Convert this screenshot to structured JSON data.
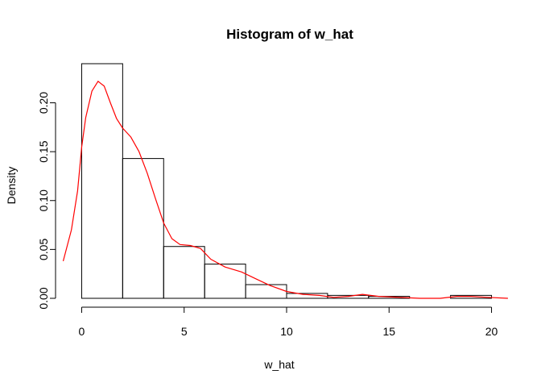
{
  "chart_data": {
    "type": "bar",
    "title": "Histogram of w_hat",
    "xlabel": "w_hat",
    "ylabel": "Density",
    "xlim": [
      -1,
      21
    ],
    "ylim": [
      0,
      0.24
    ],
    "x_ticks": [
      "0",
      "5",
      "10",
      "15",
      "20"
    ],
    "y_ticks": [
      "0.00",
      "0.05",
      "0.10",
      "0.15",
      "0.20"
    ],
    "bins": [
      {
        "x0": 0,
        "x1": 2,
        "density": 0.24
      },
      {
        "x0": 2,
        "x1": 4,
        "density": 0.143
      },
      {
        "x0": 4,
        "x1": 6,
        "density": 0.053
      },
      {
        "x0": 6,
        "x1": 8,
        "density": 0.035
      },
      {
        "x0": 8,
        "x1": 10,
        "density": 0.014
      },
      {
        "x0": 10,
        "x1": 12,
        "density": 0.005
      },
      {
        "x0": 12,
        "x1": 14,
        "density": 0.003
      },
      {
        "x0": 14,
        "x1": 16,
        "density": 0.002
      },
      {
        "x0": 16,
        "x1": 18,
        "density": 0.0
      },
      {
        "x0": 18,
        "x1": 20,
        "density": 0.003
      }
    ],
    "density_curve": {
      "color": "#ff0000",
      "points": [
        [
          -0.9,
          0.038
        ],
        [
          -0.5,
          0.07
        ],
        [
          -0.2,
          0.11
        ],
        [
          0.0,
          0.155
        ],
        [
          0.2,
          0.185
        ],
        [
          0.5,
          0.212
        ],
        [
          0.8,
          0.222
        ],
        [
          1.1,
          0.217
        ],
        [
          1.4,
          0.2
        ],
        [
          1.7,
          0.184
        ],
        [
          2.0,
          0.174
        ],
        [
          2.4,
          0.165
        ],
        [
          2.8,
          0.15
        ],
        [
          3.2,
          0.128
        ],
        [
          3.6,
          0.102
        ],
        [
          4.0,
          0.077
        ],
        [
          4.4,
          0.061
        ],
        [
          4.8,
          0.055
        ],
        [
          5.3,
          0.054
        ],
        [
          5.8,
          0.051
        ],
        [
          6.3,
          0.04
        ],
        [
          7.0,
          0.032
        ],
        [
          7.8,
          0.027
        ],
        [
          8.5,
          0.02
        ],
        [
          9.2,
          0.013
        ],
        [
          10.0,
          0.007
        ],
        [
          10.8,
          0.004
        ],
        [
          11.6,
          0.003
        ],
        [
          12.3,
          0.001
        ],
        [
          13.0,
          0.002
        ],
        [
          13.7,
          0.004
        ],
        [
          14.5,
          0.002
        ],
        [
          15.5,
          0.001
        ],
        [
          16.5,
          0.0
        ],
        [
          17.5,
          0.0
        ],
        [
          18.3,
          0.002
        ],
        [
          19.0,
          0.002
        ],
        [
          19.8,
          0.001
        ],
        [
          20.8,
          0.0
        ]
      ]
    }
  }
}
